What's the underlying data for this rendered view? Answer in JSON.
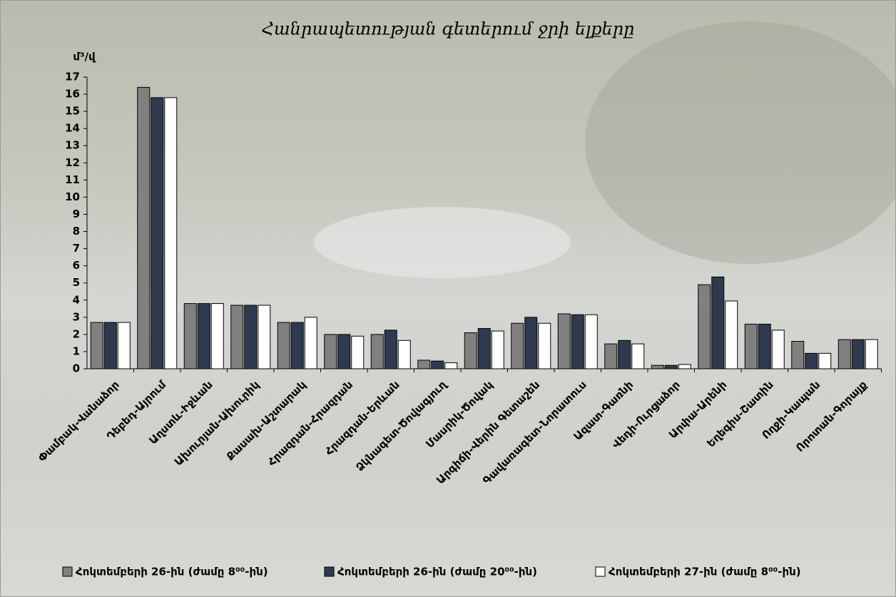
{
  "chart_data": {
    "type": "bar",
    "title": "Հանրապետության գետերում ջրի ելքերը",
    "y_label": "մ³/վ",
    "categories": [
      "Փամբակ-Վանաձոր",
      "Դեբեդ-Այրում",
      "Աղստև-Իջևան",
      "Ախուրյան-Ախուրիկ",
      "Քասախ-Աշտարակ",
      "Հրազդան-Հրազդան",
      "Հրազդան-Երևան",
      "Ձկնագետ-Ծովագյուղ",
      "Մասրիկ-Ծովակ",
      "Արգիճի-Վերին Գետաշեն",
      "Գավառագետ-Նորատուս",
      "Ազատ-Գառնի",
      "Վեդի-Ուրցաձոր",
      "Արփա-Արենի",
      "Եղեգիս-Շատին",
      "Ողջի-Կապան",
      "Որոտան-Գորայք"
    ],
    "series": [
      {
        "name": "Հոկտեմբերի 26-ին (ժամը 8⁰⁰-ին)",
        "color": "#808080",
        "values": [
          2.7,
          16.4,
          3.8,
          3.7,
          2.7,
          2.0,
          2.0,
          0.5,
          2.1,
          2.65,
          3.2,
          1.45,
          0.2,
          4.9,
          2.6,
          1.6,
          1.7
        ]
      },
      {
        "name": "Հոկտեմբերի 26-ին (ժամը 20⁰⁰-ին)",
        "color": "#2f3a4f",
        "values": [
          2.7,
          15.8,
          3.8,
          3.7,
          2.7,
          2.0,
          2.25,
          0.45,
          2.35,
          3.0,
          3.15,
          1.65,
          0.2,
          5.35,
          2.6,
          0.9,
          1.7
        ]
      },
      {
        "name": "Հոկտեմբերի 27-ին (ժամը 8⁰⁰-ին)",
        "color": "#ffffff",
        "values": [
          2.7,
          15.8,
          3.8,
          3.7,
          3.0,
          1.9,
          1.65,
          0.35,
          2.2,
          2.65,
          3.15,
          1.45,
          0.25,
          3.95,
          2.25,
          0.9,
          1.7
        ]
      }
    ],
    "ylim": [
      0,
      17
    ],
    "yticks": [
      0,
      1,
      2,
      3,
      4,
      5,
      6,
      7,
      8,
      9,
      10,
      11,
      12,
      13,
      14,
      15,
      16,
      17
    ],
    "legend": "bottom"
  }
}
